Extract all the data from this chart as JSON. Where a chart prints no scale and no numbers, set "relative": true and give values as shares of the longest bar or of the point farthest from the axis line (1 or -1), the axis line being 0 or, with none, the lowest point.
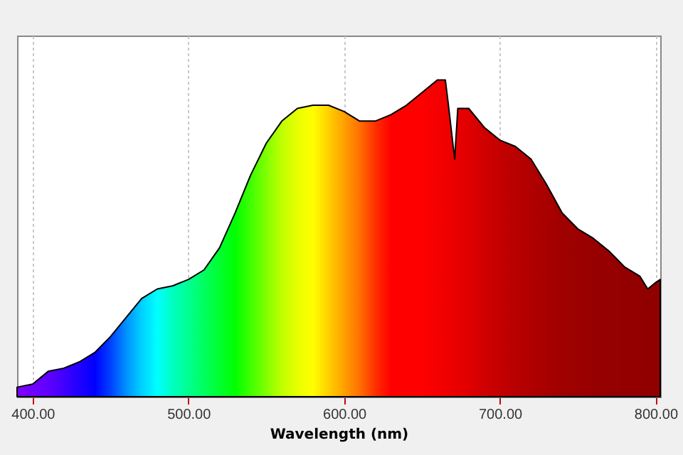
{
  "chart_data": {
    "type": "area",
    "xlabel": "Wavelength (nm)",
    "relative": true,
    "grid": "x",
    "tick_labels": "x",
    "xlim": [
      390,
      803
    ],
    "xticks": [
      {
        "value": 400,
        "label": "400.00"
      },
      {
        "value": 500,
        "label": "500.00"
      },
      {
        "value": 600,
        "label": "600.00"
      },
      {
        "value": 700,
        "label": "700.00"
      },
      {
        "value": 800,
        "label": "800.00"
      }
    ],
    "colors": [
      "#8000ff",
      "#7000ff",
      "#6000ff",
      "#4000ff",
      "#2000ff",
      "#0000ff",
      "#0040ff",
      "#0090ff",
      "#00d0ff",
      "#00ffff",
      "#00ffc0",
      "#00ff90",
      "#00ff60",
      "#00ff30",
      "#00ff00",
      "#40ff00",
      "#80ff00",
      "#c0ff00",
      "#e8ff00",
      "#ffff00",
      "#ffd000",
      "#ffa000",
      "#ff7000",
      "#ff3000",
      "#ff0000",
      "#ff0000",
      "#ff0000",
      "#f40000",
      "#f00000",
      "#ee0000",
      "#ea0000",
      "#e80000",
      "#e00000",
      "#d00000",
      "#c40000",
      "#b80000",
      "#b00000",
      "#a80000",
      "#a00000",
      "#9c0000",
      "#980000",
      "#960000",
      "#940000",
      "#920000",
      "#910000",
      "#900000",
      "#900000"
    ],
    "x": [
      390,
      400,
      410,
      420,
      430,
      440,
      450,
      460,
      470,
      480,
      490,
      500,
      510,
      520,
      530,
      540,
      550,
      560,
      570,
      580,
      590,
      600,
      610,
      620,
      630,
      640,
      650,
      660,
      665,
      667,
      671,
      673,
      680,
      690,
      700,
      710,
      720,
      730,
      740,
      750,
      760,
      770,
      780,
      790,
      795,
      800,
      803
    ],
    "values": [
      0.03,
      0.04,
      0.08,
      0.09,
      0.11,
      0.14,
      0.19,
      0.25,
      0.31,
      0.34,
      0.35,
      0.37,
      0.4,
      0.47,
      0.58,
      0.7,
      0.8,
      0.87,
      0.91,
      0.92,
      0.92,
      0.9,
      0.87,
      0.87,
      0.89,
      0.92,
      0.96,
      1,
      1,
      0.92,
      0.75,
      0.91,
      0.91,
      0.85,
      0.81,
      0.79,
      0.75,
      0.67,
      0.58,
      0.53,
      0.5,
      0.46,
      0.41,
      0.38,
      0.34,
      0.36,
      0.37
    ]
  }
}
